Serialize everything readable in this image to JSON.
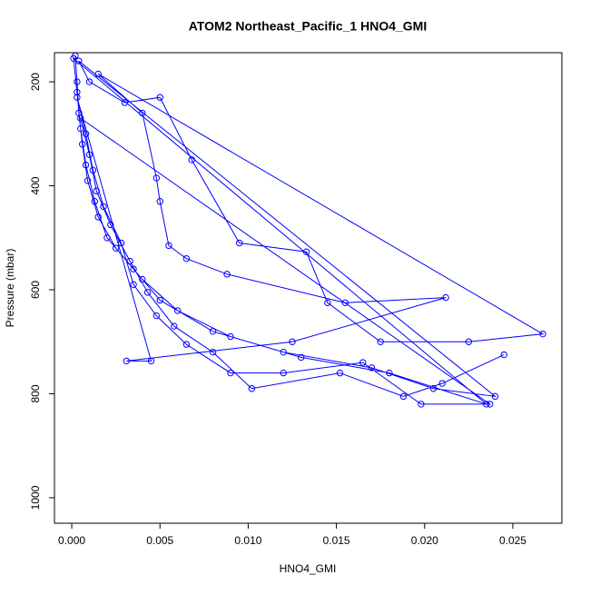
{
  "chart_data": {
    "type": "line",
    "title": "ATOM2 Northeast_Pacific_1 HNO4_GMI",
    "x_label": "HNO4_GMI",
    "y_label": "Pressure (mbar)",
    "xlim": [
      -0.00098,
      0.02778
    ],
    "ylim": [
      1049,
      144
    ],
    "xticks": [
      {
        "value": 0,
        "label": "0.000"
      },
      0.005,
      {
        "value": 0.01,
        "label": "0.010"
      },
      0.015,
      {
        "value": 0.02,
        "label": "0.020"
      },
      0.025
    ],
    "yticks": [
      200,
      400,
      600,
      800,
      1000
    ],
    "series": [
      {
        "name": "HNO4_GMI",
        "color": "#0000ff",
        "x": [
          0.0002,
          0.0003,
          0.0004,
          0.0006,
          0.0009,
          0.0015,
          0.0025,
          0.004,
          0.006,
          0.009,
          0.013,
          0.018,
          0.0235,
          0.0001,
          0.0003,
          0.0005,
          0.0008,
          0.0013,
          0.002,
          0.0035,
          0.005,
          0.008,
          0.012,
          0.017,
          0.0205,
          0.024,
          0.0004,
          0.001,
          0.003,
          0.005,
          0.0068,
          0.0095,
          0.0133,
          0.0145,
          0.0175,
          0.0225,
          0.0267,
          0.0015,
          0.004,
          0.0048,
          0.005,
          0.0055,
          0.0065,
          0.0088,
          0.0155,
          0.0212,
          0.0125,
          0.0031,
          0.0045,
          0.0003,
          0.0008,
          0.0012,
          0.0018,
          0.0028,
          0.0035,
          0.0048,
          0.0065,
          0.009,
          0.012,
          0.0165,
          0.0198,
          0.0237,
          0.0005,
          0.001,
          0.0014,
          0.0022,
          0.0033,
          0.0043,
          0.0058,
          0.008,
          0.0102,
          0.0152,
          0.0188,
          0.021,
          0.0245
        ],
        "values": [
          150,
          200,
          260,
          320,
          390,
          460,
          520,
          580,
          640,
          690,
          730,
          760,
          820,
          155,
          220,
          290,
          360,
          430,
          500,
          560,
          620,
          680,
          720,
          750,
          790,
          805,
          160,
          200,
          240,
          230,
          350,
          510,
          527,
          625,
          700,
          700,
          685,
          185,
          260,
          385,
          430,
          515,
          540,
          570,
          625,
          615,
          700,
          737,
          737,
          230,
          300,
          370,
          440,
          510,
          590,
          650,
          705,
          760,
          760,
          740,
          820,
          820,
          270,
          340,
          410,
          475,
          545,
          605,
          670,
          720,
          790,
          760,
          805,
          780,
          725
        ]
      }
    ]
  }
}
